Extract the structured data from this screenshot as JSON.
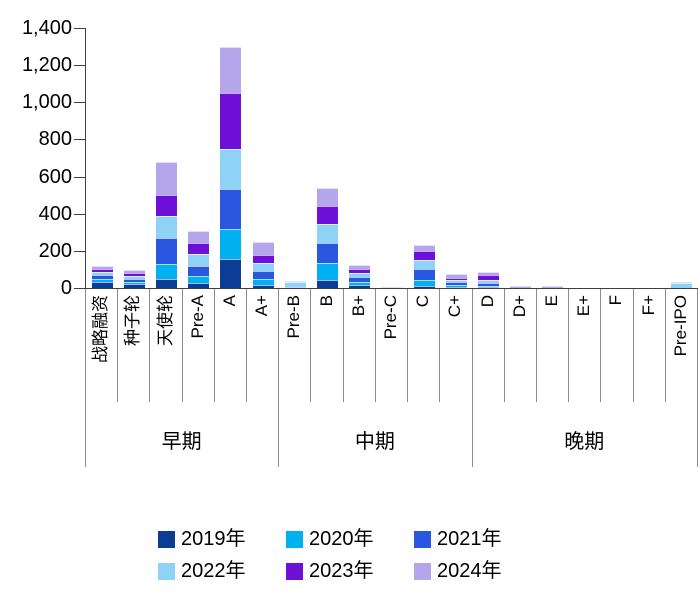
{
  "chart_data": {
    "type": "bar",
    "stacked": true,
    "title": "",
    "xlabel": "",
    "ylabel": "",
    "grid": false,
    "legend_position": "bottom",
    "categories": [
      "战略融资",
      "种子轮",
      "天使轮",
      "Pre-A",
      "A",
      "A+",
      "Pre-B",
      "B",
      "B+",
      "Pre-C",
      "C",
      "C+",
      "D",
      "D+",
      "E",
      "E+",
      "F",
      "F+",
      "Pre-IPO"
    ],
    "groups": [
      {
        "label": "早期",
        "count": 6
      },
      {
        "label": "中期",
        "count": 6
      },
      {
        "label": "晚期",
        "count": 7
      }
    ],
    "series": [
      {
        "name": "2019年",
        "color": "#0B3D94",
        "values": [
          30,
          20,
          50,
          25,
          155,
          15,
          0,
          45,
          15,
          0,
          10,
          5,
          5,
          0,
          0,
          0,
          0,
          0,
          0
        ]
      },
      {
        "name": "2020年",
        "color": "#00B0F0",
        "values": [
          20,
          15,
          80,
          40,
          165,
          35,
          5,
          90,
          20,
          0,
          35,
          10,
          5,
          0,
          0,
          0,
          0,
          0,
          0
        ]
      },
      {
        "name": "2021年",
        "color": "#2A57E0",
        "values": [
          20,
          15,
          140,
          55,
          215,
          40,
          5,
          110,
          25,
          0,
          60,
          15,
          15,
          0,
          0,
          0,
          0,
          0,
          0
        ]
      },
      {
        "name": "2022年",
        "color": "#8ED3F6",
        "values": [
          15,
          15,
          120,
          65,
          215,
          45,
          20,
          100,
          20,
          0,
          45,
          15,
          20,
          0,
          0,
          0,
          0,
          0,
          25
        ]
      },
      {
        "name": "2023年",
        "color": "#6E10D8",
        "values": [
          20,
          18,
          110,
          55,
          300,
          45,
          0,
          95,
          25,
          0,
          50,
          10,
          25,
          0,
          0,
          0,
          0,
          0,
          0
        ]
      },
      {
        "name": "2024年",
        "color": "#B5A6EC",
        "values": [
          15,
          12,
          180,
          65,
          250,
          70,
          5,
          100,
          20,
          5,
          30,
          20,
          15,
          10,
          10,
          0,
          0,
          0,
          10
        ]
      }
    ],
    "y_axis": {
      "min": 0,
      "max": 1400,
      "step": 200,
      "tick_labels": [
        "1,400",
        "1,200",
        "1,000",
        "800",
        "600",
        "400",
        "200",
        "0"
      ]
    }
  }
}
